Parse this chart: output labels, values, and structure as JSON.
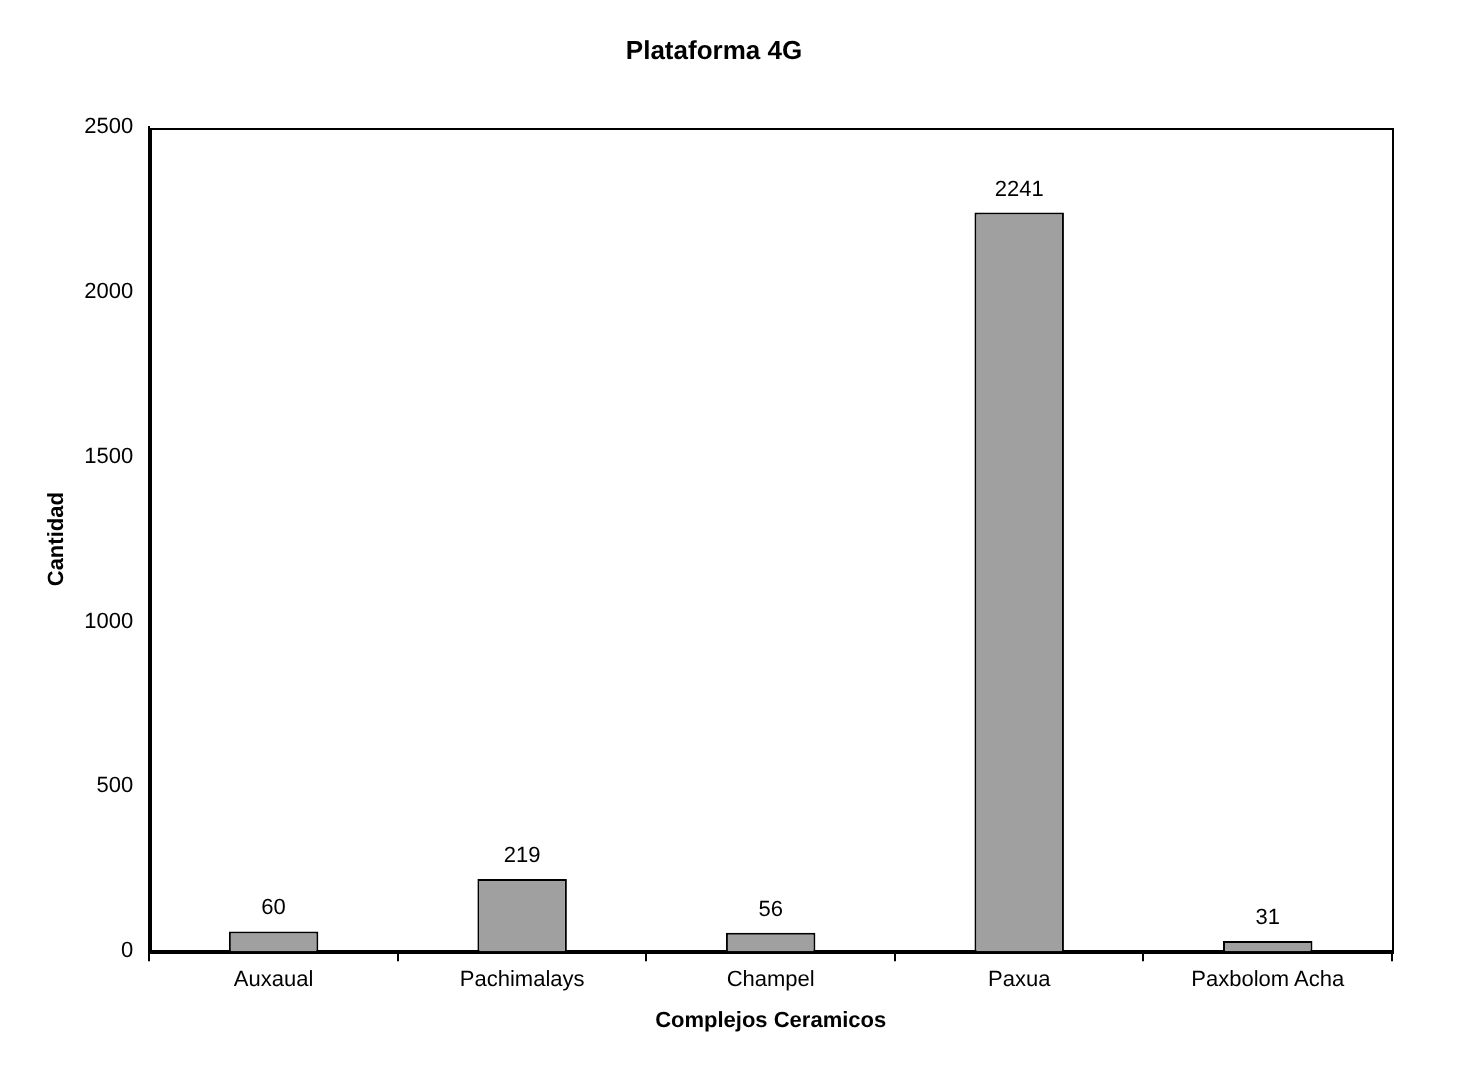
{
  "chart_data": {
    "type": "bar",
    "title": "Plataforma 4G",
    "xlabel": "Complejos Ceramicos",
    "ylabel": "Cantidad",
    "categories": [
      "Auxaual",
      "Pachimalays",
      "Champel",
      "Paxua",
      "Paxbolom Acha"
    ],
    "values": [
      60,
      219,
      56,
      2241,
      31
    ],
    "color": "#a0a0a0",
    "ylim": [
      0,
      2500
    ],
    "yticks": [
      0,
      500,
      1000,
      1500,
      2000,
      2500
    ],
    "grid": false,
    "data_labels": true
  }
}
